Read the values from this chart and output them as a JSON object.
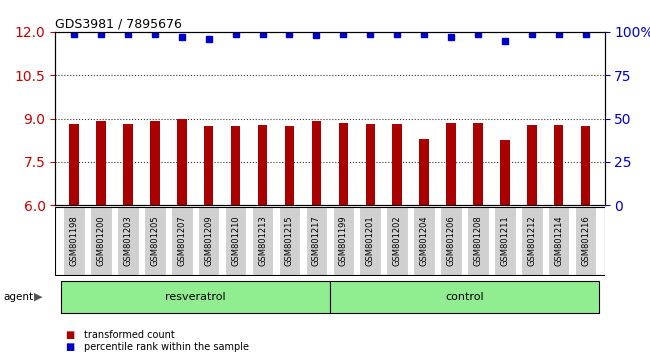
{
  "title": "GDS3981 / 7895676",
  "samples": [
    "GSM801198",
    "GSM801200",
    "GSM801203",
    "GSM801205",
    "GSM801207",
    "GSM801209",
    "GSM801210",
    "GSM801213",
    "GSM801215",
    "GSM801217",
    "GSM801199",
    "GSM801201",
    "GSM801202",
    "GSM801204",
    "GSM801206",
    "GSM801208",
    "GSM801211",
    "GSM801212",
    "GSM801214",
    "GSM801216"
  ],
  "bar_values": [
    8.8,
    8.9,
    8.8,
    8.9,
    9.0,
    8.75,
    8.75,
    8.78,
    8.73,
    8.9,
    8.85,
    8.82,
    8.82,
    8.3,
    8.85,
    8.85,
    8.25,
    8.78,
    8.78,
    8.73
  ],
  "percentile_values": [
    99,
    99,
    99,
    99,
    97,
    96,
    99,
    99,
    99,
    98,
    99,
    99,
    99,
    99,
    97,
    99,
    95,
    99,
    99,
    99
  ],
  "groups": [
    {
      "label": "resveratrol",
      "start": 0,
      "end": 9,
      "color": "#90ee90"
    },
    {
      "label": "control",
      "start": 10,
      "end": 19,
      "color": "#90ee90"
    }
  ],
  "bar_color": "#aa0000",
  "dot_color": "#0000cc",
  "ylim_left": [
    6,
    12
  ],
  "ylim_right": [
    0,
    100
  ],
  "yticks_left": [
    6,
    7.5,
    9,
    10.5,
    12
  ],
  "yticks_right": [
    0,
    25,
    50,
    75,
    100
  ],
  "ytick_labels_right": [
    "0",
    "25",
    "50",
    "75",
    "100%"
  ],
  "grid_values": [
    7.5,
    9.0,
    10.5
  ],
  "left_tick_color": "#cc0000",
  "right_tick_color": "#0000cc",
  "legend_items": [
    {
      "label": "transformed count",
      "color": "#aa0000"
    },
    {
      "label": "percentile rank within the sample",
      "color": "#0000cc"
    }
  ],
  "background_color": "#ffffff",
  "plot_bg_color": "#ffffff",
  "tick_label_bg": "#d0d0d0",
  "bar_width": 0.35
}
